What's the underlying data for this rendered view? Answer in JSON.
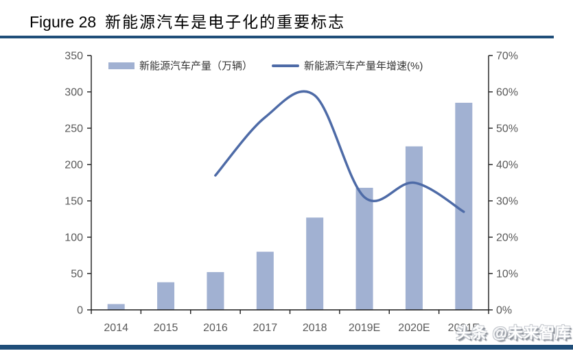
{
  "header": {
    "title_prefix": "Figure 28",
    "title_text": "新能源汽车是电子化的重要标志"
  },
  "colors": {
    "bar": "#A1B1D2",
    "line": "#4E6BA7",
    "rule": "#1F4E79",
    "axis": "#1a1a1a",
    "tick_label": "#595959"
  },
  "watermark": {
    "text": "头条 @未来智库"
  },
  "chart_data": {
    "type": "bar+line",
    "title": "Figure 28 新能源汽车是电子化的重要标志",
    "categories": [
      "2014",
      "2015",
      "2016",
      "2017",
      "2018",
      "2019E",
      "2020E",
      "2021E"
    ],
    "series": [
      {
        "name": "新能源汽车产量（万辆）",
        "type": "bar",
        "axis": "left",
        "values": [
          8,
          38,
          52,
          80,
          127,
          168,
          225,
          285
        ]
      },
      {
        "name": "新能源汽车产量年增速(%)",
        "type": "line",
        "axis": "right",
        "values": [
          null,
          null,
          37,
          53,
          59,
          31,
          35,
          27
        ]
      }
    ],
    "left_axis": {
      "min": 0,
      "max": 350,
      "step": 50,
      "tick_labels": [
        "0",
        "50",
        "100",
        "150",
        "200",
        "250",
        "300",
        "350"
      ]
    },
    "right_axis": {
      "min": 0,
      "max": 70,
      "step": 10,
      "tick_labels": [
        "0%",
        "10%",
        "20%",
        "30%",
        "40%",
        "50%",
        "60%",
        "70%"
      ]
    },
    "legend_position": "top",
    "grid": false,
    "line_smooth": true
  }
}
